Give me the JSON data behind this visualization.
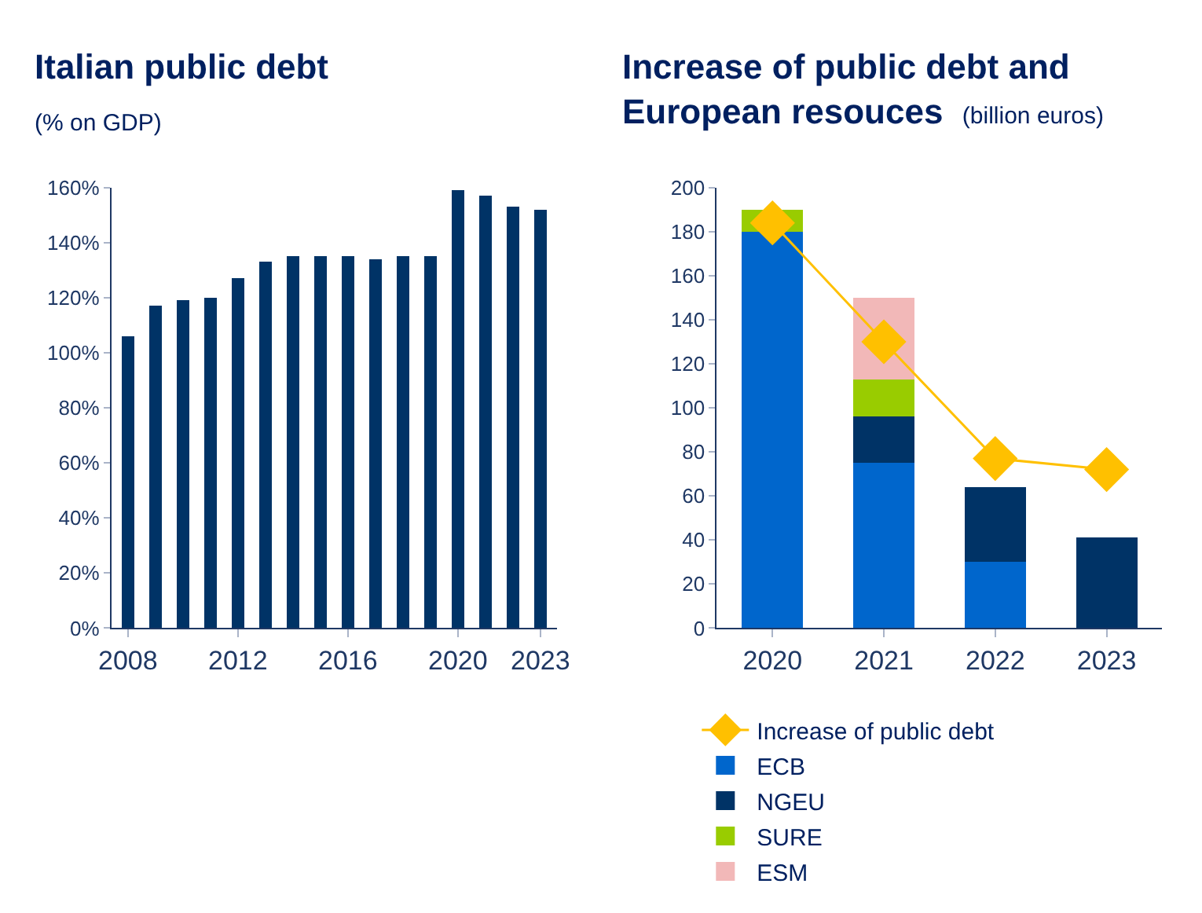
{
  "chart_data": [
    {
      "type": "bar",
      "title": "Italian public debt",
      "subtitle": "(% on GDP)",
      "x": [
        2008,
        2009,
        2010,
        2011,
        2012,
        2013,
        2014,
        2015,
        2016,
        2017,
        2018,
        2019,
        2020,
        2021,
        2022,
        2023
      ],
      "values": [
        106,
        117,
        119,
        120,
        127,
        133,
        135,
        135,
        135,
        134,
        135,
        135,
        159,
        157,
        153,
        152
      ],
      "color": "#003366",
      "xlim": [
        2007.4,
        2023.6
      ],
      "xticks": [
        2008,
        2012,
        2016,
        2020,
        2023
      ],
      "ylim": [
        0,
        160
      ],
      "yticks": [
        {
          "value": 0,
          "label": "0%"
        },
        {
          "value": 20,
          "label": "20%"
        },
        {
          "value": 40,
          "label": "40%"
        },
        {
          "value": 60,
          "label": "60%"
        },
        {
          "value": 80,
          "label": "80%"
        },
        {
          "value": 100,
          "label": "100%"
        },
        {
          "value": 120,
          "label": "120%"
        },
        {
          "value": 140,
          "label": "140%"
        },
        {
          "value": 160,
          "label": "160%"
        }
      ],
      "legend": false
    },
    {
      "type": "bar",
      "title": "Increase of public debt and European resouces",
      "subtitle": "(billion euros)",
      "categories": [
        "2020",
        "2021",
        "2022",
        "2023"
      ],
      "stacked": true,
      "series": [
        {
          "name": "Increase of public debt",
          "type": "line",
          "color": "#ffc000",
          "marker": "diamond",
          "values": [
            184,
            130,
            77,
            72
          ]
        },
        {
          "name": "ECB",
          "color": "#0066cc",
          "values": [
            180,
            75,
            30,
            null
          ]
        },
        {
          "name": "NGEU",
          "color": "#003366",
          "values": [
            null,
            21,
            34,
            41
          ]
        },
        {
          "name": "SURE",
          "color": "#99cc00",
          "values": [
            10,
            17,
            null,
            null
          ]
        },
        {
          "name": "ESM",
          "color": "#f2b8b8",
          "values": [
            null,
            37,
            null,
            null
          ]
        }
      ],
      "ylim": [
        0,
        200
      ],
      "yticks": [
        0,
        20,
        40,
        60,
        80,
        100,
        120,
        140,
        160,
        180,
        200
      ],
      "legend": "bottom"
    }
  ]
}
